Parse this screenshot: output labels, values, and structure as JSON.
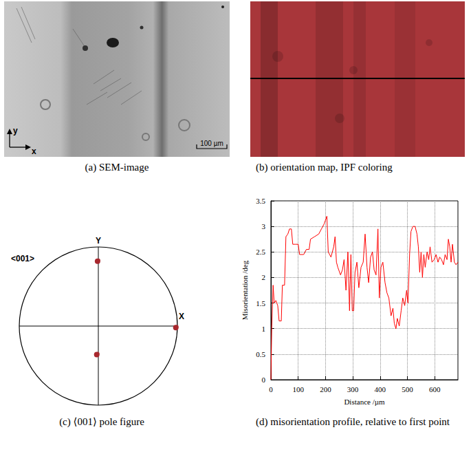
{
  "sem_image": {
    "caption": "(a) SEM-image",
    "axis_labels": {
      "x": "x",
      "y": "y"
    },
    "scale_bar": "100 µm"
  },
  "orientation_map": {
    "caption": "(b) orientation map, IPF coloring",
    "color": "#a8363a"
  },
  "pole_figure": {
    "caption": "(c) ⟨001⟩ pole figure",
    "label": "<001>",
    "axis_labels": {
      "x": "X",
      "y": "Y"
    },
    "color": "#a8282e",
    "poles": [
      {
        "x": -0.01,
        "y": 0.82
      },
      {
        "x": 0.98,
        "y": -0.02
      },
      {
        "x": -0.02,
        "y": -0.36
      }
    ]
  },
  "chart_data": {
    "type": "line",
    "caption": "(d) misorientation profile, relative to first point",
    "x_label": "Distance /µm",
    "y_label": "Misorientation /deg",
    "color": "#ff0000",
    "grid": true,
    "xlim": [
      0,
      685
    ],
    "xticks": [
      0,
      100,
      200,
      300,
      400,
      500,
      600
    ],
    "ylim": [
      0,
      3.5
    ],
    "yticks": [
      0,
      0.5,
      1,
      1.5,
      2,
      2.5,
      3,
      3.5
    ],
    "x": [
      0,
      3,
      8,
      12,
      18,
      25,
      30,
      38,
      42,
      50,
      55,
      62,
      68,
      75,
      80,
      90,
      100,
      105,
      120,
      130,
      140,
      145,
      160,
      175,
      185,
      195,
      205,
      210,
      220,
      230,
      235,
      240,
      245,
      255,
      262,
      268,
      275,
      282,
      288,
      293,
      298,
      303,
      308,
      315,
      322,
      330,
      338,
      345,
      352,
      358,
      365,
      372,
      378,
      385,
      392,
      397,
      403,
      410,
      418,
      425,
      432,
      440,
      447,
      452,
      458,
      463,
      470,
      477,
      483,
      490,
      497,
      502,
      508,
      513,
      520,
      528,
      535,
      540,
      545,
      550,
      555,
      560,
      565,
      572,
      578,
      583,
      590,
      598,
      605,
      612,
      618,
      625,
      632,
      638,
      645,
      650,
      655,
      660,
      665,
      672,
      678,
      685
    ],
    "values": [
      0,
      1.0,
      1.85,
      1.5,
      1.55,
      1.45,
      1.15,
      1.15,
      1.85,
      1.85,
      2.8,
      2.85,
      2.95,
      2.95,
      2.65,
      2.65,
      2.65,
      2.45,
      2.45,
      2.55,
      2.55,
      2.75,
      2.8,
      2.85,
      2.95,
      3.05,
      3.2,
      2.5,
      2.4,
      2.6,
      2.8,
      2.3,
      2.2,
      2.05,
      2.15,
      2.35,
      1.75,
      2.5,
      1.35,
      2.45,
      1.35,
      1.35,
      2.1,
      2.3,
      1.8,
      2.2,
      2.3,
      2.85,
      2.2,
      1.9,
      2.4,
      2.5,
      2.15,
      2.05,
      2.95,
      1.6,
      2.2,
      2.3,
      1.9,
      1.7,
      1.6,
      1.25,
      1.4,
      1.1,
      1.0,
      1.2,
      1.05,
      1.35,
      1.6,
      1.45,
      1.75,
      1.5,
      2.45,
      2.9,
      3.0,
      3.0,
      2.85,
      2.6,
      2.1,
      2.5,
      2.0,
      2.45,
      2.2,
      2.5,
      2.35,
      2.6,
      2.3,
      2.35,
      2.45,
      2.3,
      2.4,
      2.35,
      2.25,
      2.45,
      2.35,
      2.75,
      2.6,
      2.3,
      2.65,
      2.3,
      2.25,
      2.3
    ]
  }
}
